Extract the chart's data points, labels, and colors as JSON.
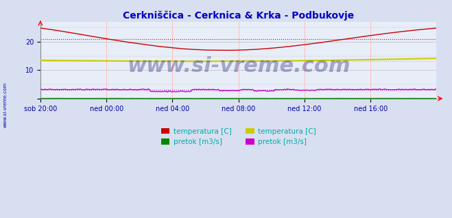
{
  "title": "Cerkniščica - Cerknica & Krka - Podbukovje",
  "title_color": "#0000cc",
  "bg_color": "#d8dff0",
  "plot_bg_color": "#e8eef8",
  "xtick_labels": [
    "sob 20:00",
    "ned 00:00",
    "ned 04:00",
    "ned 08:00",
    "ned 12:00",
    "ned 16:00"
  ],
  "ymin": 0,
  "ymax": 27,
  "n_points": 288,
  "cerknica_temp_avg": 21.0,
  "krka_temp_avg": 13.3,
  "cerknica_pretok_avg": 3.2,
  "krka_pretok_avg": 0.05,
  "line_color_red": "#cc0000",
  "line_color_green": "#008800",
  "line_color_yellow": "#cccc00",
  "line_color_magenta": "#cc00cc",
  "dotted_red": "#dd0000",
  "dotted_yellow": "#cccc00",
  "dotted_magenta": "#cc00cc",
  "watermark": "www.si-vreme.com",
  "left_label": "www.si-vreme.com",
  "legend_labels": [
    "temperatura [C]",
    "pretok [m3/s]",
    "temperatura [C]",
    "pretok [m3/s]"
  ],
  "legend_colors": [
    "#cc0000",
    "#008800",
    "#cccc00",
    "#cc00cc"
  ]
}
